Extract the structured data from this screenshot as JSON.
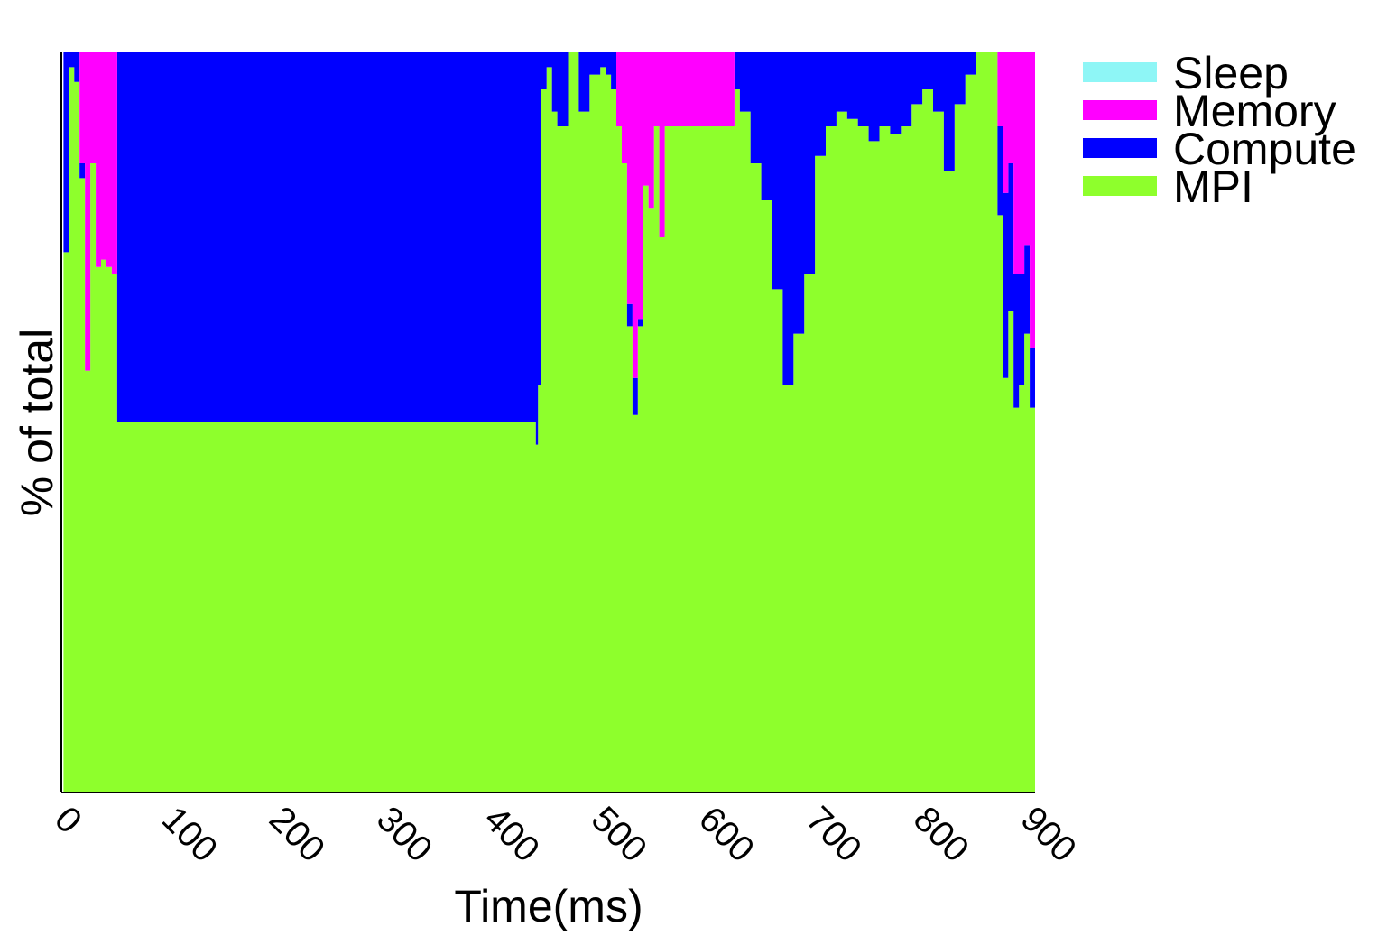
{
  "chart_data": {
    "type": "area",
    "stacked": true,
    "normalized": true,
    "xlabel": "Time(ms)",
    "ylabel": "% of total",
    "xlim": [
      -2,
      905
    ],
    "ylim": [
      0,
      100
    ],
    "x_ticks": [
      "0",
      "100",
      "200",
      "300",
      "400",
      "500",
      "600",
      "700",
      "800",
      "900"
    ],
    "x_tick_rotation": 45,
    "y_ticks_shown": false,
    "grid": false,
    "legend": {
      "position": "right-top",
      "entries": [
        "Sleep",
        "Memory",
        "Compute",
        "MPI"
      ]
    },
    "colors": {
      "Sleep": "#8ef6f6",
      "Memory": "#ff00ff",
      "Compute": "#0000ff",
      "MPI": "#8eff2c"
    },
    "x": [
      0,
      5,
      10,
      15,
      20,
      25,
      30,
      35,
      40,
      45,
      50,
      100,
      200,
      300,
      400,
      440,
      442,
      445,
      450,
      455,
      460,
      470,
      480,
      490,
      500,
      505,
      510,
      515,
      520,
      525,
      530,
      535,
      540,
      545,
      550,
      555,
      560,
      565,
      570,
      580,
      590,
      600,
      610,
      620,
      625,
      630,
      640,
      650,
      660,
      670,
      680,
      690,
      700,
      710,
      720,
      730,
      740,
      750,
      760,
      770,
      780,
      790,
      800,
      810,
      820,
      830,
      840,
      850,
      860,
      865,
      870,
      875,
      880,
      885,
      890,
      895,
      900
    ],
    "series": [
      {
        "name": "MPI",
        "values": [
          73,
          98,
          96,
          83,
          57,
          85,
          71,
          72,
          71,
          70,
          50,
          50,
          50,
          50,
          50,
          47,
          55,
          95,
          98,
          92,
          90,
          100,
          92,
          97,
          98,
          97,
          95,
          90,
          85,
          63,
          51,
          63,
          82,
          79,
          90,
          75,
          90,
          90,
          90,
          90,
          90,
          90,
          90,
          90,
          95,
          92,
          85,
          80,
          68,
          55,
          62,
          70,
          86,
          90,
          92,
          91,
          90,
          88,
          90,
          89,
          90,
          93,
          95,
          92,
          84,
          93,
          97,
          100,
          100,
          100,
          78,
          56,
          65,
          52,
          55,
          62,
          52
        ]
      },
      {
        "name": "Compute",
        "values": [
          27,
          2,
          4,
          2,
          0,
          0,
          0,
          0,
          0,
          0,
          50,
          50,
          50,
          50,
          50,
          53,
          45,
          5,
          2,
          8,
          10,
          0,
          8,
          3,
          2,
          3,
          5,
          0,
          0,
          3,
          5,
          1,
          0,
          0,
          0,
          0,
          0,
          0,
          0,
          0,
          0,
          0,
          0,
          0,
          5,
          8,
          15,
          20,
          32,
          45,
          38,
          30,
          14,
          10,
          8,
          9,
          10,
          12,
          10,
          11,
          10,
          7,
          5,
          8,
          16,
          7,
          3,
          0,
          0,
          0,
          12,
          25,
          20,
          18,
          15,
          12,
          8
        ]
      },
      {
        "name": "Memory",
        "values": [
          0,
          0,
          0,
          15,
          43,
          15,
          29,
          28,
          29,
          30,
          0,
          0,
          0,
          0,
          0,
          0,
          0,
          0,
          0,
          0,
          0,
          0,
          0,
          0,
          0,
          0,
          0,
          10,
          15,
          34,
          44,
          36,
          18,
          21,
          10,
          25,
          10,
          10,
          10,
          10,
          10,
          10,
          10,
          10,
          0,
          0,
          0,
          0,
          0,
          0,
          0,
          0,
          0,
          0,
          0,
          0,
          0,
          0,
          0,
          0,
          0,
          0,
          0,
          0,
          0,
          0,
          0,
          0,
          0,
          0,
          10,
          19,
          15,
          30,
          30,
          26,
          40
        ]
      },
      {
        "name": "Sleep",
        "values": [
          0,
          0,
          0,
          0,
          0,
          0,
          0,
          0,
          0,
          0,
          0,
          0,
          0,
          0,
          0,
          0,
          0,
          0,
          0,
          0,
          0,
          0,
          0,
          0,
          0,
          0,
          0,
          0,
          0,
          0,
          0,
          0,
          0,
          0,
          0,
          0,
          0,
          0,
          0,
          0,
          0,
          0,
          0,
          0,
          0,
          0,
          0,
          0,
          0,
          0,
          0,
          0,
          0,
          0,
          0,
          0,
          0,
          0,
          0,
          0,
          0,
          0,
          0,
          0,
          0,
          0,
          0,
          0,
          0,
          0,
          0,
          0,
          0,
          0,
          0,
          0,
          0
        ]
      }
    ]
  }
}
